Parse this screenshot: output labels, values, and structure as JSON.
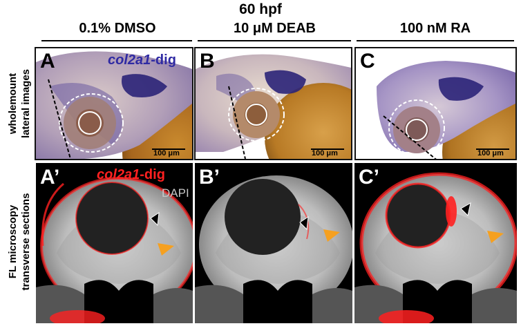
{
  "figure": {
    "title": "60 hpf",
    "columns": [
      "0.1% DMSO",
      "10 μM DEAB",
      "100 nM RA"
    ],
    "row_labels": {
      "top": [
        "wholemount",
        "lateral images"
      ],
      "bottom": [
        "FL microscopy",
        "transverse sections"
      ]
    },
    "top_panels": [
      {
        "letter": "A",
        "probe_name": "col2a1",
        "probe_suffix": "-dig",
        "scale": "100 μm"
      },
      {
        "letter": "B",
        "scale": "100 μm"
      },
      {
        "letter": "C",
        "scale": "100 μm"
      }
    ],
    "bottom_panels": [
      {
        "letter": "A’",
        "probe_name": "col2a1",
        "probe_suffix": "-dig",
        "stain": "DAPI"
      },
      {
        "letter": "B’"
      },
      {
        "letter": "C’"
      }
    ]
  },
  "colors": {
    "col2a1_top": "#2f2aa3",
    "col2a1_bottom": "#ff2020",
    "dapi": "#c8c8c8",
    "arrow_black": "#000000",
    "arrow_orange": "#f5a020"
  }
}
